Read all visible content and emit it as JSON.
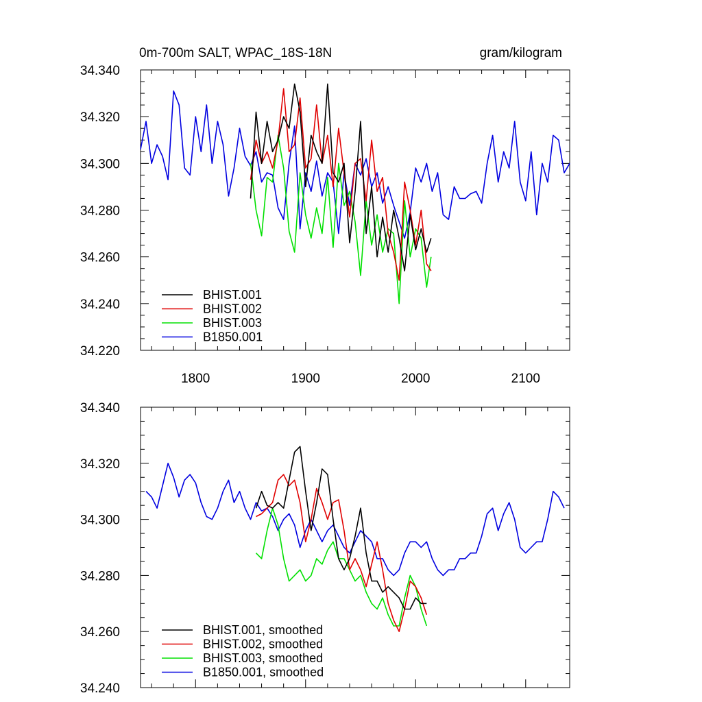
{
  "header": {
    "title_left": "0m-700m SALT, WPAC_18S-18N",
    "title_right": "gram/kilogram"
  },
  "colors": {
    "BHIST.001": "#000000",
    "BHIST.002": "#e00000",
    "BHIST.003": "#00e000",
    "B1850.001": "#0000e0"
  },
  "chart_data": [
    {
      "type": "line",
      "panel": "top",
      "title": "0m-700m SALT, WPAC_18S-18N",
      "units": "gram/kilogram",
      "xlim": [
        1750,
        2140
      ],
      "ylim": [
        34.22,
        34.34
      ],
      "xticks": [
        1800,
        1900,
        2000,
        2100
      ],
      "xtick_labels": [
        "1800",
        "1900",
        "2000",
        "2100"
      ],
      "yticks": [
        34.22,
        34.24,
        34.26,
        34.28,
        34.3,
        34.32,
        34.34
      ],
      "ytick_labels": [
        "34.220",
        "34.240",
        "34.260",
        "34.280",
        "34.300",
        "34.320",
        "34.340"
      ],
      "legend_position": "bottom-left",
      "series": [
        {
          "name": "BHIST.001",
          "label": "BHIST.001",
          "x": [
            1850,
            1855,
            1860,
            1865,
            1870,
            1875,
            1880,
            1885,
            1890,
            1895,
            1900,
            1905,
            1910,
            1915,
            1920,
            1925,
            1930,
            1935,
            1940,
            1945,
            1950,
            1955,
            1960,
            1965,
            1970,
            1975,
            1980,
            1985,
            1990,
            1995,
            2000,
            2005,
            2010,
            2014
          ],
          "y": [
            34.285,
            34.322,
            34.3,
            34.318,
            34.305,
            34.31,
            34.32,
            34.315,
            34.334,
            34.322,
            34.29,
            34.312,
            34.305,
            34.3,
            34.334,
            34.296,
            34.292,
            34.3,
            34.266,
            34.288,
            34.318,
            34.27,
            34.29,
            34.26,
            34.277,
            34.262,
            34.28,
            34.268,
            34.254,
            34.278,
            34.263,
            34.272,
            34.262,
            34.268
          ]
        },
        {
          "name": "BHIST.002",
          "label": "BHIST.002",
          "x": [
            1850,
            1855,
            1860,
            1865,
            1870,
            1875,
            1880,
            1885,
            1890,
            1895,
            1900,
            1905,
            1910,
            1915,
            1920,
            1925,
            1930,
            1935,
            1940,
            1945,
            1950,
            1955,
            1960,
            1965,
            1970,
            1975,
            1980,
            1985,
            1990,
            1995,
            2000,
            2005,
            2010,
            2014
          ],
          "y": [
            34.293,
            34.31,
            34.3,
            34.305,
            34.298,
            34.31,
            34.332,
            34.305,
            34.308,
            34.328,
            34.298,
            34.302,
            34.325,
            34.3,
            34.312,
            34.29,
            34.315,
            34.296,
            34.277,
            34.3,
            34.302,
            34.284,
            34.31,
            34.288,
            34.294,
            34.27,
            34.262,
            34.25,
            34.292,
            34.28,
            34.265,
            34.28,
            34.257,
            34.254
          ]
        },
        {
          "name": "BHIST.003",
          "label": "BHIST.003",
          "x": [
            1850,
            1855,
            1860,
            1865,
            1870,
            1875,
            1880,
            1885,
            1890,
            1895,
            1900,
            1905,
            1910,
            1915,
            1920,
            1925,
            1930,
            1935,
            1940,
            1945,
            1950,
            1955,
            1960,
            1965,
            1970,
            1975,
            1980,
            1985,
            1990,
            1995,
            2000,
            2005,
            2010,
            2014
          ],
          "y": [
            34.3,
            34.28,
            34.269,
            34.294,
            34.292,
            34.312,
            34.298,
            34.271,
            34.262,
            34.296,
            34.278,
            34.268,
            34.281,
            34.27,
            34.294,
            34.264,
            34.3,
            34.282,
            34.288,
            34.275,
            34.252,
            34.284,
            34.265,
            34.278,
            34.262,
            34.272,
            34.27,
            34.24,
            34.284,
            34.26,
            34.272,
            34.268,
            34.247,
            34.26
          ]
        },
        {
          "name": "B1850.001",
          "label": "B1850.001",
          "x": [
            1750,
            1755,
            1760,
            1765,
            1770,
            1775,
            1780,
            1785,
            1790,
            1795,
            1800,
            1805,
            1810,
            1815,
            1820,
            1825,
            1830,
            1835,
            1840,
            1845,
            1850,
            1855,
            1860,
            1865,
            1870,
            1875,
            1880,
            1885,
            1890,
            1895,
            1900,
            1905,
            1910,
            1915,
            1920,
            1925,
            1930,
            1935,
            1940,
            1945,
            1950,
            1955,
            1960,
            1965,
            1970,
            1975,
            1980,
            1985,
            1990,
            1995,
            2000,
            2005,
            2010,
            2015,
            2020,
            2025,
            2030,
            2035,
            2040,
            2045,
            2050,
            2055,
            2060,
            2065,
            2070,
            2075,
            2080,
            2085,
            2090,
            2095,
            2100,
            2105,
            2110,
            2115,
            2120,
            2125,
            2130,
            2135,
            2140
          ],
          "y": [
            34.306,
            34.318,
            34.3,
            34.308,
            34.303,
            34.293,
            34.331,
            34.325,
            34.298,
            34.295,
            34.32,
            34.305,
            34.325,
            34.3,
            34.318,
            34.308,
            34.286,
            34.298,
            34.315,
            34.303,
            34.299,
            34.305,
            34.292,
            34.296,
            34.295,
            34.281,
            34.276,
            34.3,
            34.316,
            34.272,
            34.296,
            34.288,
            34.301,
            34.286,
            34.296,
            34.292,
            34.27,
            34.296,
            34.282,
            34.3,
            34.295,
            34.302,
            34.29,
            34.296,
            34.283,
            34.29,
            34.282,
            34.275,
            34.268,
            34.279,
            34.298,
            34.292,
            34.3,
            34.288,
            34.296,
            34.278,
            34.276,
            34.29,
            34.285,
            34.285,
            34.287,
            34.288,
            34.283,
            34.3,
            34.312,
            34.292,
            34.305,
            34.298,
            34.318,
            34.292,
            34.284,
            34.305,
            34.278,
            34.3,
            34.292,
            34.312,
            34.31,
            34.296,
            34.3
          ]
        }
      ]
    },
    {
      "type": "line",
      "panel": "bottom",
      "xlim": [
        1750,
        2140
      ],
      "ylim": [
        34.24,
        34.34
      ],
      "xticks": [
        1800,
        1900,
        2000,
        2100
      ],
      "yticks": [
        34.24,
        34.26,
        34.28,
        34.3,
        34.32,
        34.34
      ],
      "ytick_labels": [
        "34.240",
        "34.260",
        "34.280",
        "34.300",
        "34.320",
        "34.340"
      ],
      "legend_position": "bottom-left",
      "series": [
        {
          "name": "BHIST.001",
          "label": "BHIST.001, smoothed",
          "x": [
            1855,
            1860,
            1865,
            1870,
            1875,
            1880,
            1885,
            1890,
            1895,
            1900,
            1905,
            1910,
            1915,
            1920,
            1925,
            1930,
            1935,
            1940,
            1945,
            1950,
            1955,
            1960,
            1965,
            1970,
            1975,
            1980,
            1985,
            1990,
            1995,
            2000,
            2005,
            2010
          ],
          "y": [
            34.304,
            34.31,
            34.305,
            34.304,
            34.306,
            34.304,
            34.314,
            34.324,
            34.326,
            34.31,
            34.296,
            34.306,
            34.318,
            34.316,
            34.3,
            34.286,
            34.282,
            34.286,
            34.294,
            34.304,
            34.288,
            34.278,
            34.278,
            34.274,
            34.276,
            34.274,
            34.272,
            34.268,
            34.268,
            34.272,
            34.27,
            34.27
          ]
        },
        {
          "name": "BHIST.002",
          "label": "BHIST.002, smoothed",
          "x": [
            1855,
            1860,
            1865,
            1870,
            1875,
            1880,
            1885,
            1890,
            1895,
            1900,
            1905,
            1910,
            1915,
            1920,
            1925,
            1930,
            1935,
            1940,
            1945,
            1950,
            1955,
            1960,
            1965,
            1970,
            1975,
            1980,
            1985,
            1990,
            1995,
            2000,
            2005,
            2010
          ],
          "y": [
            34.301,
            34.302,
            34.304,
            34.306,
            34.314,
            34.316,
            34.312,
            34.314,
            34.306,
            34.292,
            34.3,
            34.311,
            34.306,
            34.3,
            34.306,
            34.307,
            34.296,
            34.282,
            34.286,
            34.282,
            34.276,
            34.284,
            34.292,
            34.282,
            34.27,
            34.264,
            34.26,
            34.268,
            34.278,
            34.276,
            34.272,
            34.266
          ]
        },
        {
          "name": "BHIST.003",
          "label": "BHIST.003, smoothed",
          "x": [
            1855,
            1860,
            1865,
            1870,
            1875,
            1880,
            1885,
            1890,
            1895,
            1900,
            1905,
            1910,
            1915,
            1920,
            1925,
            1930,
            1935,
            1940,
            1945,
            1950,
            1955,
            1960,
            1965,
            1970,
            1975,
            1980,
            1985,
            1990,
            1995,
            2000,
            2005,
            2010
          ],
          "y": [
            34.288,
            34.286,
            34.296,
            34.304,
            34.298,
            34.286,
            34.278,
            34.28,
            34.282,
            34.278,
            34.28,
            34.286,
            34.284,
            34.289,
            34.292,
            34.286,
            34.286,
            34.282,
            34.278,
            34.28,
            34.274,
            34.27,
            34.268,
            34.272,
            34.266,
            34.262,
            34.262,
            34.272,
            34.28,
            34.276,
            34.268,
            34.262
          ]
        },
        {
          "name": "B1850.001",
          "label": "B1850.001, smoothed",
          "x": [
            1755,
            1760,
            1765,
            1770,
            1775,
            1780,
            1785,
            1790,
            1795,
            1800,
            1805,
            1810,
            1815,
            1820,
            1825,
            1830,
            1835,
            1840,
            1845,
            1850,
            1855,
            1860,
            1865,
            1870,
            1875,
            1880,
            1885,
            1890,
            1895,
            1900,
            1905,
            1910,
            1915,
            1920,
            1925,
            1930,
            1935,
            1940,
            1945,
            1950,
            1955,
            1960,
            1965,
            1970,
            1975,
            1980,
            1985,
            1990,
            1995,
            2000,
            2005,
            2010,
            2015,
            2020,
            2025,
            2030,
            2035,
            2040,
            2045,
            2050,
            2055,
            2060,
            2065,
            2070,
            2075,
            2080,
            2085,
            2090,
            2095,
            2100,
            2105,
            2110,
            2115,
            2120,
            2125,
            2130,
            2135
          ],
          "y": [
            34.31,
            34.308,
            34.304,
            34.312,
            34.32,
            34.315,
            34.308,
            34.314,
            34.316,
            34.313,
            34.306,
            34.301,
            34.3,
            34.304,
            34.31,
            34.314,
            34.306,
            34.31,
            34.304,
            34.3,
            34.306,
            34.303,
            34.304,
            34.301,
            34.296,
            34.3,
            34.302,
            34.298,
            34.29,
            34.296,
            34.3,
            34.296,
            34.292,
            34.296,
            34.298,
            34.294,
            34.29,
            34.288,
            34.292,
            34.296,
            34.294,
            34.292,
            34.286,
            34.286,
            34.282,
            34.28,
            34.282,
            34.288,
            34.292,
            34.292,
            34.29,
            34.292,
            34.286,
            34.282,
            34.28,
            34.282,
            34.282,
            34.286,
            34.286,
            34.288,
            34.288,
            34.294,
            34.302,
            34.304,
            34.296,
            34.302,
            34.306,
            34.3,
            34.29,
            34.288,
            34.29,
            34.292,
            34.292,
            34.3,
            34.31,
            34.308,
            34.304
          ]
        }
      ]
    }
  ]
}
